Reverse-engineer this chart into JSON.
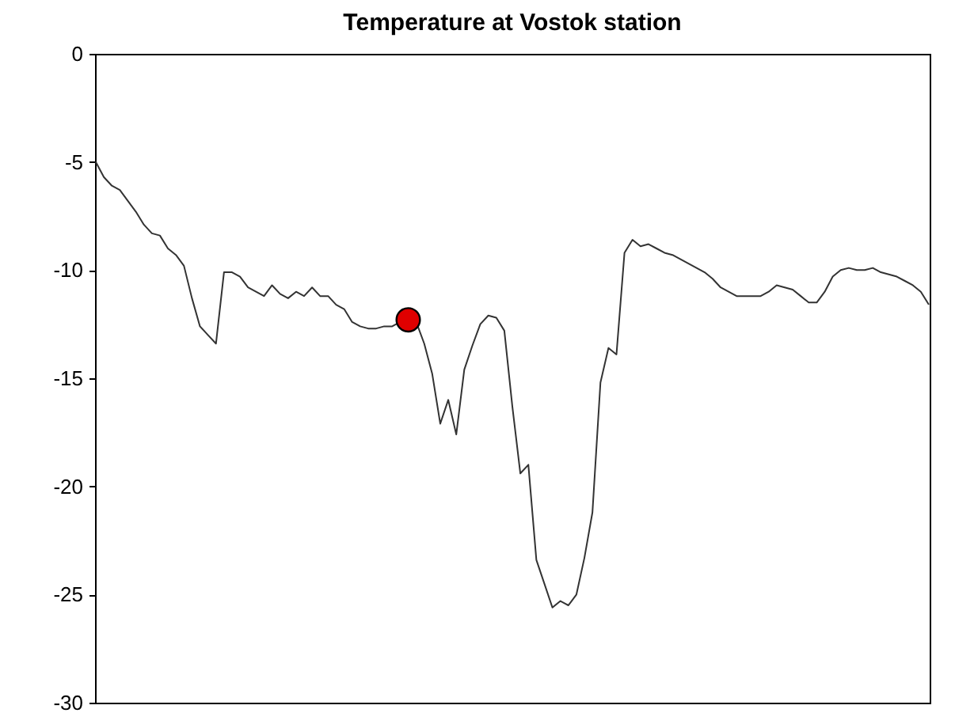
{
  "chart_data": {
    "type": "line",
    "title": "Temperature at Vostok station",
    "ylim": [
      -30,
      0
    ],
    "yticks": [
      -30,
      -25,
      -20,
      -15,
      -10,
      -5,
      0
    ],
    "tick_labels": "y",
    "grid": false,
    "categories": [
      null,
      null,
      null,
      null,
      null,
      null,
      null,
      null,
      null,
      null,
      null,
      null,
      null,
      null,
      null,
      null,
      null,
      null,
      null,
      null,
      null,
      null,
      null,
      null,
      null,
      null,
      null,
      null,
      null,
      null,
      null,
      null,
      null,
      null,
      null,
      null,
      null,
      null,
      null,
      null,
      null,
      null,
      null,
      null,
      null,
      null,
      null,
      null,
      null,
      null,
      null,
      null,
      null,
      null,
      null,
      null,
      null,
      null,
      null,
      null,
      null,
      null,
      null,
      null,
      null,
      null,
      null,
      null,
      null,
      null,
      null,
      null,
      null,
      null,
      null,
      null,
      null,
      null,
      null,
      null,
      null,
      null,
      null,
      null,
      null,
      null,
      null,
      null,
      null,
      null,
      null,
      null,
      null,
      null,
      null,
      null,
      null,
      null,
      null,
      null,
      null,
      null,
      null,
      null,
      null
    ],
    "series": [
      {
        "color": "#333333",
        "marker": "none",
        "values": [
          -5.0,
          -5.7,
          -6.1,
          -6.3,
          -6.8,
          -7.3,
          -7.9,
          -8.3,
          -8.4,
          -9.0,
          -9.3,
          -9.8,
          -11.3,
          -12.6,
          -13.0,
          -13.4,
          -10.1,
          -10.1,
          -10.3,
          -10.8,
          -11.0,
          -11.2,
          -10.7,
          -11.1,
          -11.3,
          -11.0,
          -11.2,
          -10.8,
          -11.2,
          -11.2,
          -11.6,
          -11.8,
          -12.4,
          -12.6,
          -12.7,
          -12.7,
          -12.6,
          -12.6,
          -12.4,
          -12.3,
          -12.4,
          -13.4,
          -14.8,
          -17.1,
          -16.0,
          -17.6,
          -14.6,
          -13.5,
          -12.5,
          -12.1,
          -12.2,
          -12.8,
          -16.3,
          -19.4,
          -19.0,
          -23.4,
          -24.5,
          -25.6,
          -25.3,
          -25.5,
          -25.0,
          -23.3,
          -21.2,
          -15.2,
          -13.6,
          -13.9,
          -9.2,
          -8.6,
          -8.9,
          -8.8,
          -9.0,
          -9.2,
          -9.3,
          -9.5,
          -9.7,
          -9.9,
          -10.1,
          -10.4,
          -10.8,
          -11.0,
          -11.2,
          -11.2,
          -11.2,
          -11.2,
          -11.0,
          -10.7,
          -10.8,
          -10.9,
          -11.2,
          -11.5,
          -11.5,
          -11.0,
          -10.3,
          -10.0,
          -9.9,
          -10.0,
          -10.0,
          -9.9,
          -10.1,
          -10.2,
          -10.3,
          -10.5,
          -10.7,
          -11.0,
          -11.6
        ]
      },
      {
        "type": "scatter",
        "color": "#e00000",
        "marker": "circle",
        "values": [
          null,
          null,
          null,
          null,
          null,
          null,
          null,
          null,
          null,
          null,
          null,
          null,
          null,
          null,
          null,
          null,
          null,
          null,
          null,
          null,
          null,
          null,
          null,
          null,
          null,
          null,
          null,
          null,
          null,
          null,
          null,
          null,
          null,
          null,
          null,
          null,
          null,
          null,
          null,
          -12.3,
          null,
          null,
          null,
          null,
          null,
          null,
          null,
          null,
          null,
          null,
          null,
          null,
          null,
          null,
          null,
          null,
          null,
          null,
          null,
          null,
          null,
          null,
          null,
          null,
          null,
          null,
          null,
          null,
          null,
          null,
          null,
          null,
          null,
          null,
          null,
          null,
          null,
          null,
          null,
          null,
          null,
          null,
          null,
          null,
          null,
          null,
          null,
          null,
          null,
          null,
          null,
          null,
          null,
          null,
          null,
          null,
          null,
          null,
          null,
          null,
          null,
          null,
          null,
          null,
          null
        ]
      }
    ]
  }
}
